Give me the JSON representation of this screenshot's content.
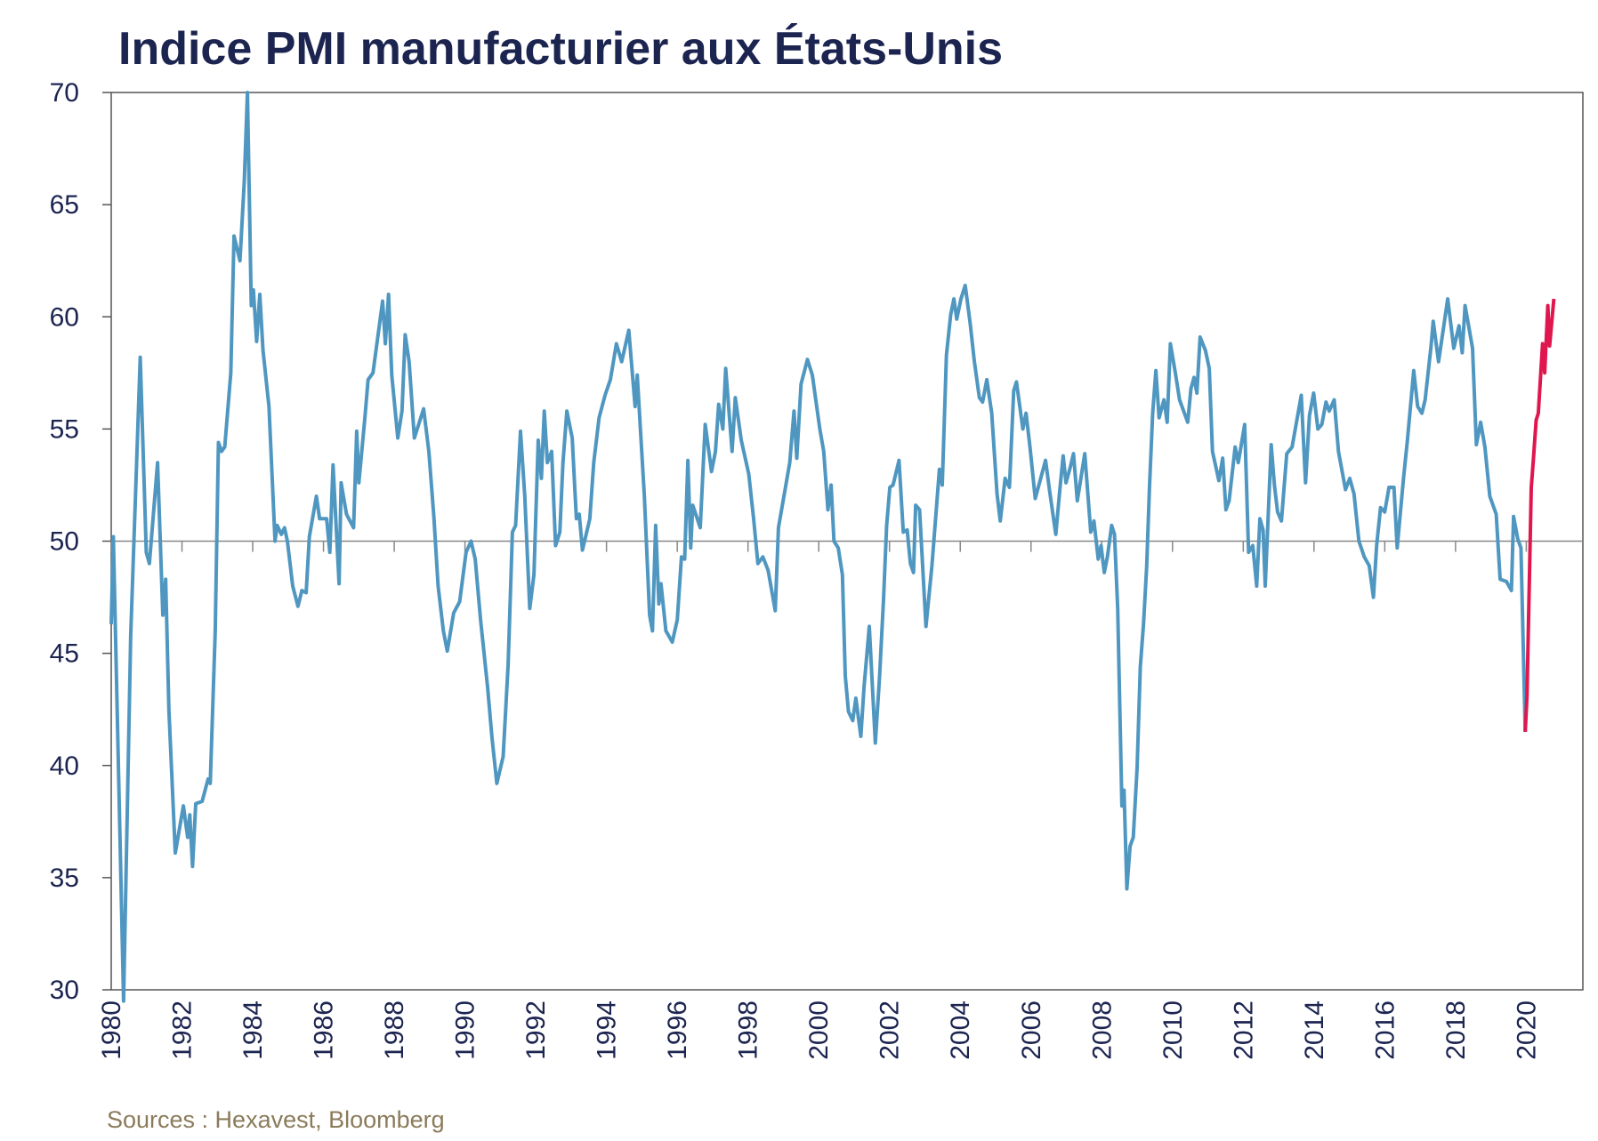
{
  "chart_data": {
    "type": "line",
    "title": "Indice PMI manufacturier aux États-Unis",
    "source": "Sources : Hexavest, Bloomberg",
    "xlim": [
      1980,
      2021.6
    ],
    "xticks": [
      1980,
      1982,
      1984,
      1986,
      1988,
      1990,
      1992,
      1994,
      1996,
      1998,
      2000,
      2002,
      2004,
      2006,
      2008,
      2010,
      2012,
      2014,
      2016,
      2018,
      2020
    ],
    "ylim": [
      30,
      70
    ],
    "yticks": [
      30,
      35,
      40,
      45,
      50,
      55,
      60,
      65,
      70
    ],
    "hline": 50,
    "series": [
      {
        "color": "#4f97c0",
        "x": [
          1980,
          1980.06,
          1980.35,
          1980.55,
          1980.82,
          1980.99,
          1981.08,
          1981.31,
          1981.46,
          1981.54,
          1981.63,
          1981.81,
          1982.04,
          1982.16,
          1982.22,
          1982.3,
          1982.39,
          1982.57,
          1982.74,
          1982.8,
          1982.94,
          1983.03,
          1983.12,
          1983.21,
          1983.38,
          1983.47,
          1983.64,
          1983.76,
          1983.85,
          1983.96,
          1984.02,
          1984.11,
          1984.2,
          1984.29,
          1984.46,
          1984.63,
          1984.69,
          1984.81,
          1984.9,
          1984.98,
          1985.13,
          1985.28,
          1985.39,
          1985.51,
          1985.6,
          1985.8,
          1985.89,
          1986.09,
          1986.18,
          1986.27,
          1986.44,
          1986.5,
          1986.65,
          1986.85,
          1986.94,
          1987,
          1987.17,
          1987.26,
          1987.4,
          1987.67,
          1987.75,
          1987.84,
          1987.93,
          1988.1,
          1988.22,
          1988.31,
          1988.42,
          1988.57,
          1988.83,
          1988.98,
          1989.12,
          1989.24,
          1989.39,
          1989.5,
          1989.68,
          1989.85,
          1990.03,
          1990.17,
          1990.29,
          1990.44,
          1990.64,
          1990.76,
          1990.9,
          1991.08,
          1991.22,
          1991.34,
          1991.43,
          1991.57,
          1991.69,
          1991.83,
          1991.95,
          1992.07,
          1992.16,
          1992.24,
          1992.33,
          1992.45,
          1992.56,
          1992.68,
          1992.77,
          1992.88,
          1993.03,
          1993.15,
          1993.23,
          1993.32,
          1993.53,
          1993.64,
          1993.79,
          1993.96,
          1994.11,
          1994.28,
          1994.43,
          1994.63,
          1994.81,
          1994.87,
          1995.07,
          1995.22,
          1995.3,
          1995.39,
          1995.48,
          1995.54,
          1995.68,
          1995.86,
          1996,
          1996.12,
          1996.21,
          1996.3,
          1996.38,
          1996.44,
          1996.65,
          1996.79,
          1996.97,
          1997.08,
          1997.17,
          1997.29,
          1997.37,
          1997.55,
          1997.64,
          1997.81,
          1998.02,
          1998.16,
          1998.28,
          1998.42,
          1998.57,
          1998.77,
          1998.86,
          1999.06,
          1999.18,
          1999.3,
          1999.38,
          1999.5,
          1999.68,
          1999.82,
          2000.03,
          2000.14,
          2000.26,
          2000.35,
          2000.43,
          2000.55,
          2000.67,
          2000.75,
          2000.84,
          2000.96,
          2001.05,
          2001.19,
          2001.28,
          2001.43,
          2001.6,
          2001.72,
          2001.83,
          2001.92,
          2002.01,
          2002.1,
          2002.27,
          2002.39,
          2002.5,
          2002.59,
          2002.68,
          2002.74,
          2002.85,
          2003.03,
          2003.2,
          2003.41,
          2003.49,
          2003.61,
          2003.73,
          2003.82,
          2003.9,
          2004.02,
          2004.14,
          2004.28,
          2004.4,
          2004.54,
          2004.63,
          2004.75,
          2004.89,
          2005.04,
          2005.13,
          2005.27,
          2005.39,
          2005.51,
          2005.59,
          2005.77,
          2005.86,
          2005.97,
          2006.12,
          2006.41,
          2006.53,
          2006.7,
          2006.82,
          2006.91,
          2006.99,
          2007.11,
          2007.2,
          2007.31,
          2007.52,
          2007.69,
          2007.78,
          2007.9,
          2007.98,
          2008.07,
          2008.16,
          2008.28,
          2008.36,
          2008.45,
          2008.57,
          2008.63,
          2008.71,
          2008.8,
          2008.89,
          2009,
          2009.09,
          2009.18,
          2009.27,
          2009.35,
          2009.44,
          2009.53,
          2009.62,
          2009.76,
          2009.85,
          2009.94,
          2010.08,
          2010.2,
          2010.43,
          2010.52,
          2010.61,
          2010.69,
          2010.78,
          2010.93,
          2011.04,
          2011.13,
          2011.31,
          2011.42,
          2011.51,
          2011.6,
          2011.77,
          2011.86,
          2012.04,
          2012.15,
          2012.27,
          2012.38,
          2012.47,
          2012.56,
          2012.62,
          2012.79,
          2012.88,
          2012.97,
          2013.08,
          2013.23,
          2013.38,
          2013.64,
          2013.76,
          2013.87,
          2013.99,
          2014.11,
          2014.22,
          2014.34,
          2014.43,
          2014.57,
          2014.69,
          2014.89,
          2015.01,
          2015.13,
          2015.27,
          2015.42,
          2015.56,
          2015.68,
          2015.77,
          2015.88,
          2016,
          2016.12,
          2016.26,
          2016.35,
          2016.53,
          2016.64,
          2016.82,
          2016.93,
          2017.05,
          2017.14,
          2017.31,
          2017.37,
          2017.52,
          2017.78,
          2017.95,
          2018.1,
          2018.19,
          2018.27,
          2018.48,
          2018.59,
          2018.71,
          2018.83,
          2018.97,
          2019.15,
          2019.26,
          2019.44,
          2019.58,
          2019.64,
          2019.76,
          2019.85,
          2019.97
        ],
        "values": [
          46.3,
          50.2,
          29.5,
          45.8,
          58.2,
          49.5,
          49,
          53.5,
          46.7,
          48.3,
          42.5,
          36.1,
          38.2,
          36.8,
          37.8,
          35.5,
          38.3,
          38.4,
          39.4,
          39.2,
          46,
          54.4,
          54,
          54.2,
          57.5,
          63.6,
          62.5,
          66,
          70,
          60.5,
          61.2,
          58.9,
          61,
          58.5,
          56,
          50,
          50.7,
          50.3,
          50.6,
          50,
          48,
          47.1,
          47.8,
          47.7,
          50.2,
          52,
          51,
          51,
          49.5,
          53.4,
          48.1,
          52.6,
          51.2,
          50.6,
          54.9,
          52.6,
          55.5,
          57.2,
          57.5,
          60.7,
          58.8,
          61,
          57.4,
          54.6,
          55.8,
          59.2,
          58,
          54.6,
          55.9,
          54,
          51.1,
          48,
          46,
          45.1,
          46.8,
          47.3,
          49.5,
          50,
          49.2,
          46.5,
          43.5,
          41.3,
          39.2,
          40.4,
          44.5,
          50.4,
          50.7,
          54.9,
          52,
          47,
          48.5,
          54.5,
          52.8,
          55.8,
          53.5,
          54,
          49.8,
          50.4,
          53.5,
          55.8,
          54.6,
          51,
          51.2,
          49.6,
          51,
          53.5,
          55.5,
          56.5,
          57.2,
          58.8,
          58,
          59.4,
          56,
          57.4,
          52,
          46.7,
          46,
          50.7,
          47.2,
          48.1,
          46,
          45.5,
          46.5,
          49.3,
          49.2,
          53.6,
          49.7,
          51.6,
          50.6,
          55.2,
          53.1,
          54,
          56.1,
          55,
          57.7,
          54,
          56.4,
          54.5,
          53,
          51,
          49,
          49.3,
          48.7,
          46.9,
          50.6,
          52.4,
          53.5,
          55.8,
          53.7,
          57,
          58.1,
          57.4,
          55,
          54,
          51.4,
          52.5,
          50,
          49.7,
          48.5,
          44,
          42.4,
          42,
          43,
          41.3,
          43.5,
          46.2,
          41,
          44,
          47.4,
          50.7,
          52.4,
          52.5,
          53.6,
          50.4,
          50.5,
          49,
          48.6,
          51.6,
          51.4,
          46.2,
          48.9,
          53.2,
          52.5,
          58.3,
          60.1,
          60.8,
          59.9,
          60.8,
          61.4,
          59.7,
          58,
          56.4,
          56.2,
          57.2,
          55.7,
          52.1,
          50.9,
          52.8,
          52.4,
          56.7,
          57.1,
          55,
          55.7,
          54.2,
          51.9,
          53.6,
          52.2,
          50.3,
          52.4,
          53.8,
          52.6,
          53.3,
          53.9,
          51.8,
          53.9,
          50.4,
          50.9,
          49.2,
          49.8,
          48.6,
          49.3,
          50.7,
          50.3,
          47,
          38.2,
          38.9,
          34.5,
          36.4,
          36.8,
          39.9,
          44.4,
          46.3,
          48.9,
          52.4,
          55.7,
          57.6,
          55.5,
          56.3,
          55.3,
          58.8,
          57.5,
          56.3,
          55.3,
          56.8,
          57.3,
          56.6,
          59.1,
          58.5,
          57.7,
          54,
          52.7,
          53.7,
          51.4,
          51.8,
          54.2,
          53.5,
          55.2,
          49.5,
          49.8,
          48,
          51,
          50.5,
          48,
          54.3,
          52.5,
          51.3,
          50.9,
          53.9,
          54.2,
          56.5,
          52.6,
          55.6,
          56.6,
          55,
          55.2,
          56.2,
          55.8,
          56.3,
          54,
          52.3,
          52.8,
          52.1,
          50,
          49.3,
          48.9,
          47.5,
          49.8,
          51.5,
          51.3,
          52.4,
          52.4,
          49.7,
          52.8,
          54.5,
          57.6,
          56,
          55.7,
          56.3,
          58.7,
          59.8,
          58,
          60.8,
          58.6,
          59.6,
          58.4,
          60.5,
          58.6,
          54.3,
          55.3,
          54.2,
          52,
          51.2,
          48.3,
          48.2,
          47.8,
          51.1,
          50.1,
          49.7,
          41.5
        ]
      },
      {
        "color": "#e0174f",
        "x": [
          2019.97,
          2020.02,
          2020.14,
          2020.2,
          2020.28,
          2020.34,
          2020.46,
          2020.52,
          2020.61,
          2020.66,
          2020.78
        ],
        "values": [
          41.5,
          43.1,
          52.4,
          53.6,
          55.4,
          55.7,
          58.8,
          57.5,
          60.5,
          58.7,
          60.8
        ]
      }
    ]
  }
}
